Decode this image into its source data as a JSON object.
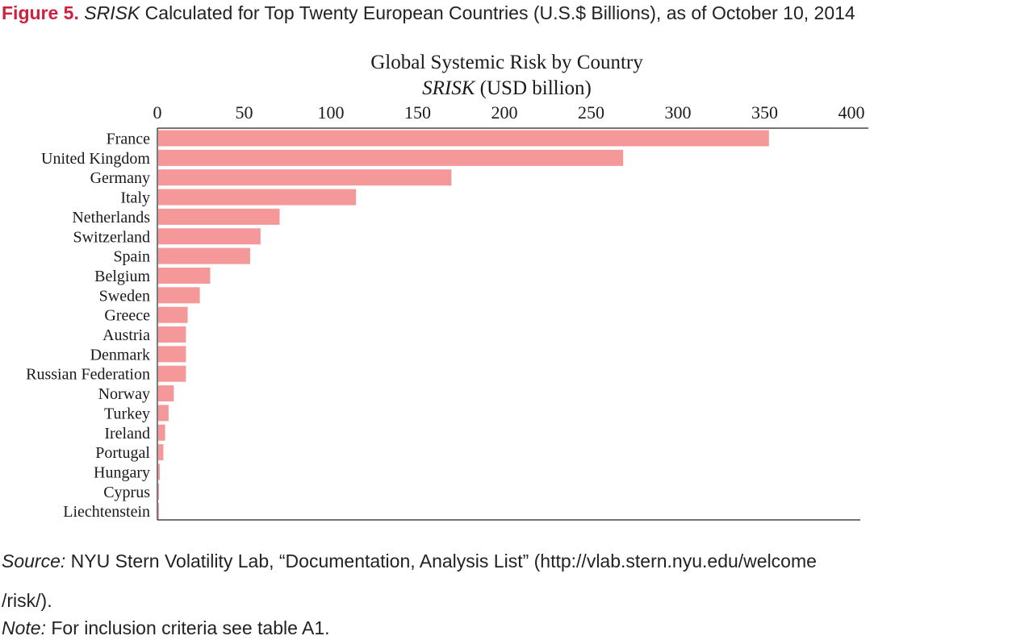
{
  "figure": {
    "label": "Figure 5.",
    "term": "SRISK",
    "title_rest": " Calculated for Top Twenty European Countries (U.S.$ Billions), as of October 10, 2014"
  },
  "chart_data": {
    "type": "bar",
    "orientation": "horizontal",
    "title": "Global Systemic Risk by Country",
    "xlabel_italic": "SRISK",
    "xlabel_rest": " (USD billion)",
    "xlim": [
      0,
      400
    ],
    "xticks": [
      0,
      50,
      100,
      150,
      200,
      250,
      300,
      350,
      400
    ],
    "axis_position": "top",
    "grid": false,
    "bar_color": "#f4989a",
    "categories": [
      "France",
      "United Kingdom",
      "Germany",
      "Italy",
      "Netherlands",
      "Switzerland",
      "Spain",
      "Belgium",
      "Sweden",
      "Greece",
      "Austria",
      "Denmark",
      "Russian Federation",
      "Norway",
      "Turkey",
      "Ireland",
      "Portugal",
      "Hungary",
      "Cyprus",
      "Liechtenstein"
    ],
    "values": [
      352,
      268,
      169,
      114,
      70,
      59,
      53,
      30,
      24,
      17,
      16,
      16,
      16,
      9,
      6,
      4,
      3,
      1,
      0.5,
      0.3
    ]
  },
  "footnotes": {
    "source_lead": "Source:",
    "source_text": " NYU Stern Volatility Lab, “Documentation, Analysis List” (http://vlab.stern.nyu.edu/welcome",
    "source_cont": "/risk/).",
    "note_lead": "Note:",
    "note_text": " For inclusion criteria see table A1."
  }
}
